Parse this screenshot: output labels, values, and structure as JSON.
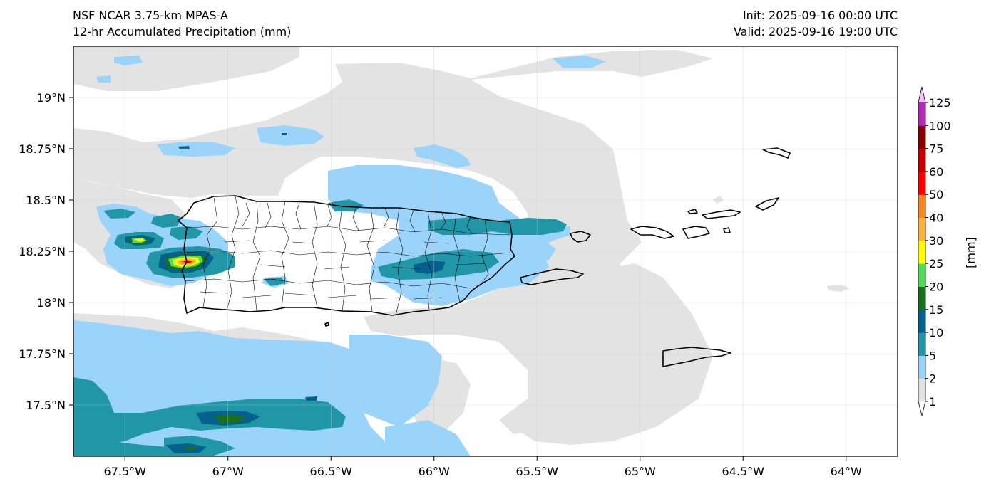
{
  "header": {
    "model_title": "NSF NCAR 3.75-km MPAS-A",
    "field_title": "12-hr Accumulated Precipitation (mm)",
    "init_text": "Init: 2025-09-16 00:00 UTC",
    "valid_text": "Valid: 2025-09-16 19:00 UTC"
  },
  "map": {
    "lon_range": [
      -67.75,
      -63.75
    ],
    "lat_range": [
      17.25,
      19.25
    ],
    "lon_ticks": [
      {
        "value": -67.5,
        "label": "67.5°W"
      },
      {
        "value": -67.0,
        "label": "67°W"
      },
      {
        "value": -66.5,
        "label": "66.5°W"
      },
      {
        "value": -66.0,
        "label": "66°W"
      },
      {
        "value": -65.5,
        "label": "65.5°W"
      },
      {
        "value": -65.0,
        "label": "65°W"
      },
      {
        "value": -64.5,
        "label": "64.5°W"
      },
      {
        "value": -64.0,
        "label": "64°W"
      }
    ],
    "lat_ticks": [
      {
        "value": 19.0,
        "label": "19°N"
      },
      {
        "value": 18.75,
        "label": "18.75°N"
      },
      {
        "value": 18.5,
        "label": "18.5°N"
      },
      {
        "value": 18.25,
        "label": "18.25°N"
      },
      {
        "value": 18.0,
        "label": "18°N"
      },
      {
        "value": 17.75,
        "label": "17.75°N"
      },
      {
        "value": 17.5,
        "label": "17.5°N"
      }
    ],
    "gridlines": true
  },
  "colorbar": {
    "unit_label": "[mm]",
    "levels": [
      "1",
      "2",
      "5",
      "10",
      "15",
      "20",
      "25",
      "30",
      "40",
      "50",
      "60",
      "75",
      "100",
      "125"
    ],
    "colors": [
      "#e3e3e3",
      "#9ad4fb",
      "#2196a6",
      "#04608c",
      "#1a6f1e",
      "#4fdc5a",
      "#ffff00",
      "#ffb43c",
      "#f8871f",
      "#ff0000",
      "#c40000",
      "#8a0000",
      "#b52ab8",
      "#f8bff8"
    ]
  }
}
